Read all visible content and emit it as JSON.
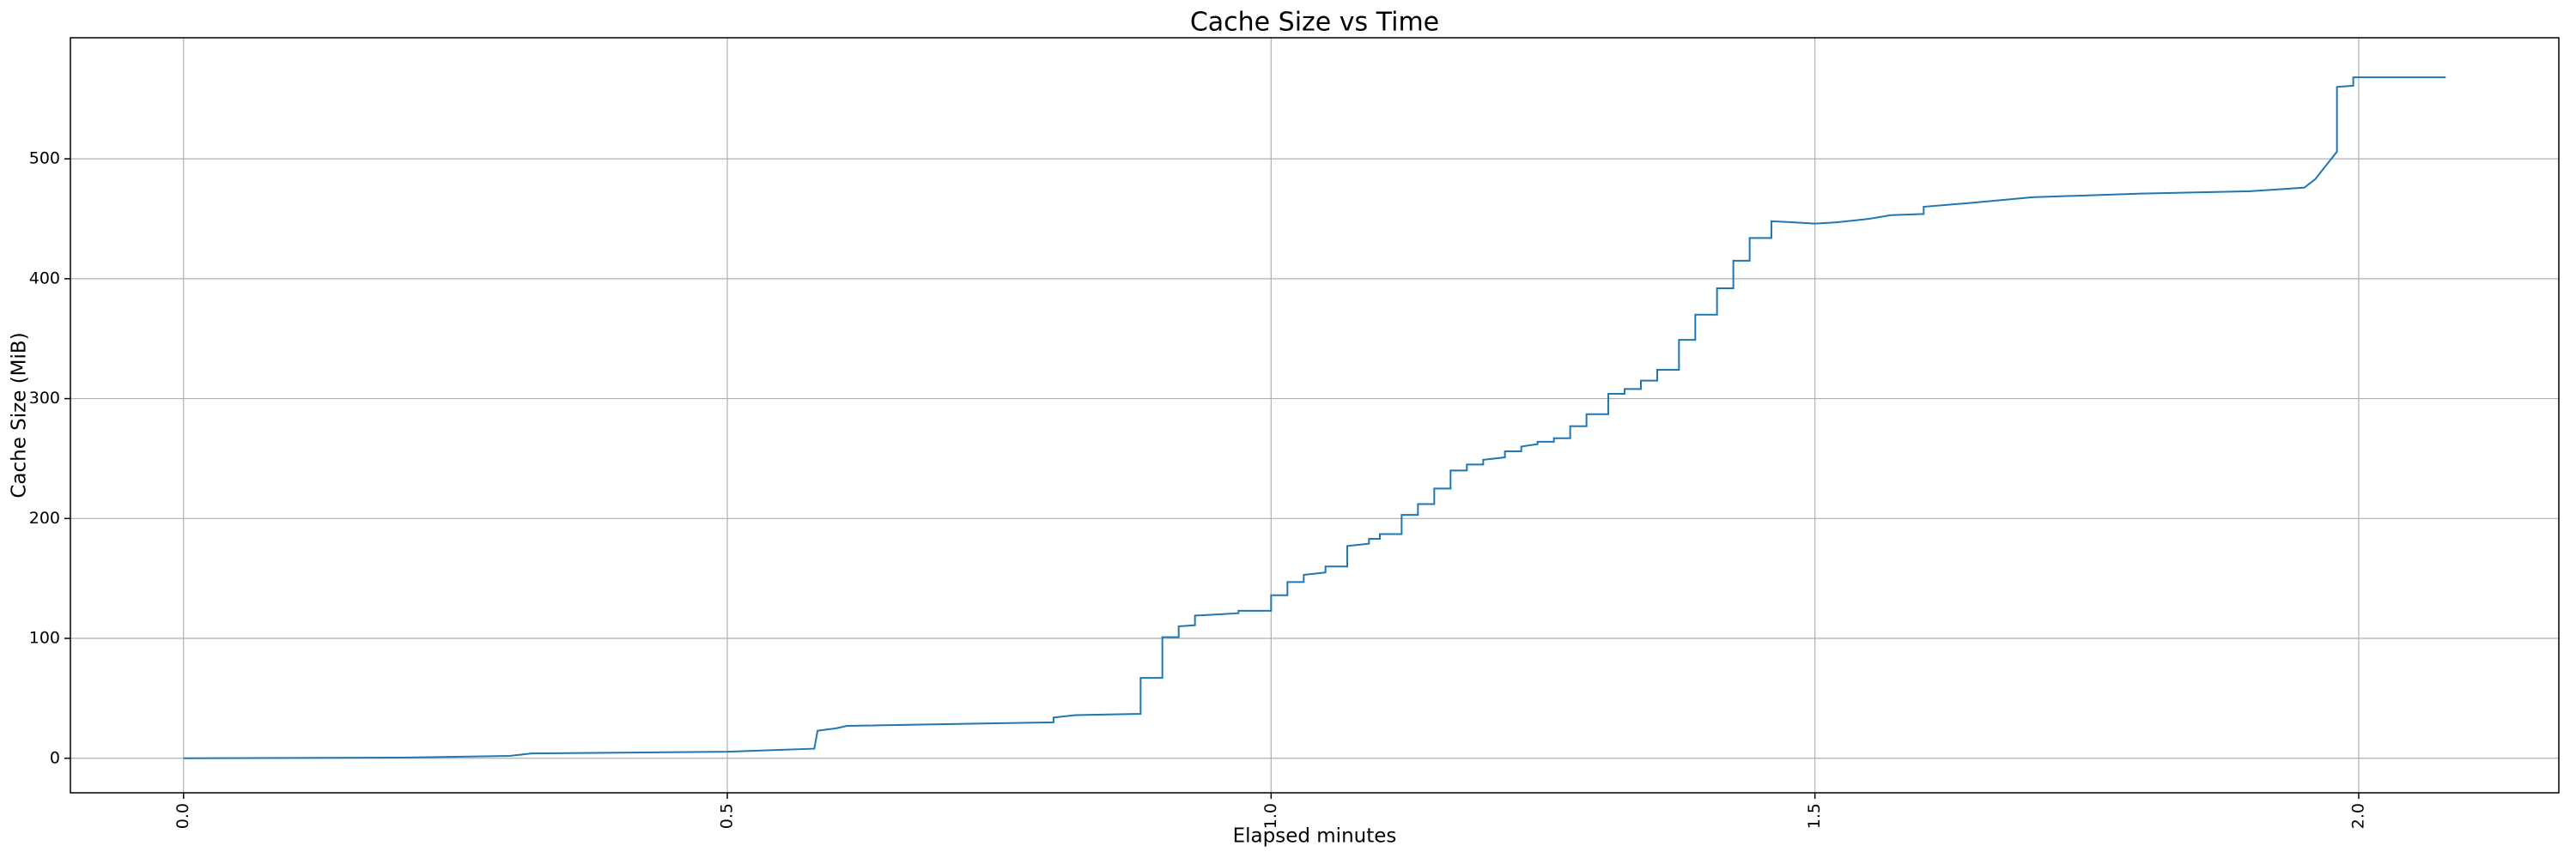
{
  "chart_data": {
    "type": "line",
    "title": "Cache Size vs Time",
    "xlabel": "Elapsed minutes",
    "ylabel": "Cache Size (MiB)",
    "x": [
      0.0,
      0.2,
      0.3,
      0.32,
      0.5,
      0.58,
      0.583,
      0.6,
      0.61,
      0.8,
      0.8,
      0.82,
      0.88,
      0.88,
      0.9,
      0.9,
      0.915,
      0.915,
      0.93,
      0.93,
      0.97,
      0.97,
      1.0,
      1.0,
      1.015,
      1.015,
      1.03,
      1.03,
      1.05,
      1.05,
      1.07,
      1.07,
      1.09,
      1.09,
      1.1,
      1.1,
      1.12,
      1.12,
      1.135,
      1.135,
      1.15,
      1.15,
      1.165,
      1.165,
      1.18,
      1.18,
      1.195,
      1.195,
      1.215,
      1.215,
      1.23,
      1.23,
      1.245,
      1.245,
      1.26,
      1.26,
      1.275,
      1.275,
      1.29,
      1.29,
      1.31,
      1.31,
      1.325,
      1.325,
      1.34,
      1.34,
      1.355,
      1.355,
      1.375,
      1.375,
      1.39,
      1.39,
      1.41,
      1.41,
      1.425,
      1.425,
      1.44,
      1.44,
      1.46,
      1.46,
      1.48,
      1.5,
      1.52,
      1.55,
      1.57,
      1.6,
      1.6,
      1.64,
      1.7,
      1.8,
      1.9,
      1.95,
      1.96,
      1.98,
      1.98,
      1.995,
      1.995,
      2.08
    ],
    "values": [
      0,
      0.5,
      2,
      4,
      5.5,
      8,
      23,
      25,
      27,
      30,
      34,
      36,
      37,
      67,
      67,
      101,
      101,
      110,
      111,
      119,
      121,
      123,
      123,
      136,
      136,
      147,
      147,
      153,
      155,
      160,
      160,
      177,
      179,
      183,
      183,
      187,
      187,
      203,
      203,
      212,
      212,
      225,
      225,
      240,
      240,
      245,
      245,
      249,
      251,
      256,
      256,
      260,
      262,
      264,
      264,
      267,
      267,
      277,
      277,
      287,
      287,
      304,
      304,
      308,
      308,
      315,
      315,
      324,
      324,
      349,
      349,
      370,
      370,
      392,
      392,
      415,
      415,
      434,
      434,
      448,
      447,
      446,
      447,
      450,
      453,
      454,
      460,
      463,
      468,
      471,
      473,
      476,
      483,
      506,
      560,
      561,
      568,
      568
    ],
    "color": "#1f77b4",
    "xlim": [
      -0.104,
      2.184
    ],
    "ylim": [
      -28.8,
      601
    ],
    "xticks": [
      {
        "value": 0,
        "label": "0.0"
      },
      {
        "value": 0.5,
        "label": "0.5"
      },
      {
        "value": 1,
        "label": "1.0"
      },
      {
        "value": 1.5,
        "label": "1.5"
      },
      {
        "value": 2,
        "label": "2.0"
      }
    ],
    "yticks": [
      0,
      100,
      200,
      300,
      400,
      500
    ],
    "grid": true
  }
}
